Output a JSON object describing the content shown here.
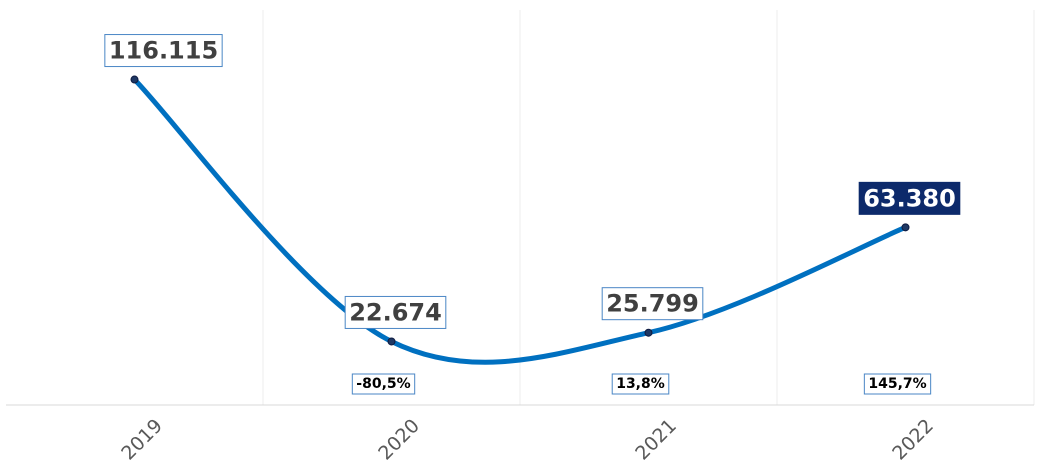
{
  "chart_data": {
    "type": "line",
    "categories": [
      "2019",
      "2020",
      "2021",
      "2022"
    ],
    "series": [
      {
        "color": "#0070c0",
        "values": [
          116115,
          22674,
          25799,
          63380
        ],
        "value_labels": [
          "116.115",
          "22.674",
          "25.799",
          "63.380"
        ]
      }
    ],
    "change_labels": [
      null,
      "-80,5%",
      "13,8%",
      "145,7%"
    ],
    "ylim": [
      0,
      140000
    ]
  }
}
